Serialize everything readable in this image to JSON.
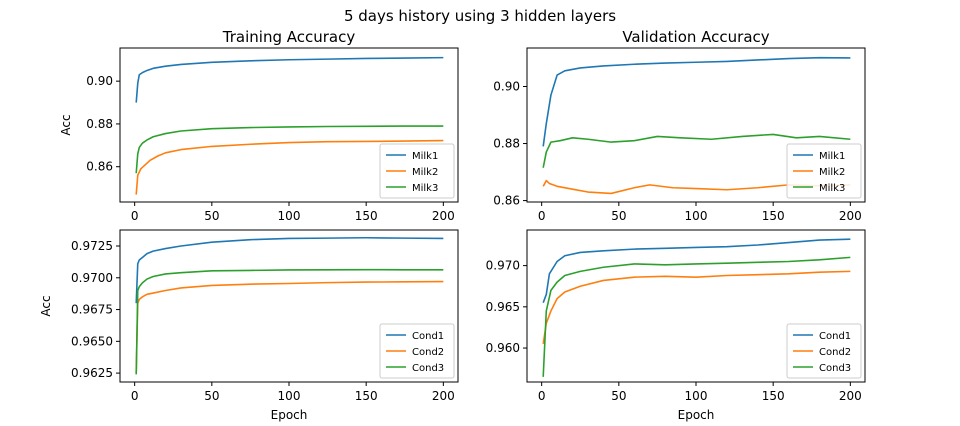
{
  "figure": {
    "title": "5 days history using 3 hidden layers"
  },
  "colors": {
    "series1": "#1f77b4",
    "series2": "#ff7f0e",
    "series3": "#2ca02c"
  },
  "chart_data": [
    {
      "type": "line",
      "title": "Training Accuracy",
      "xlabel": "",
      "ylabel": "Acc",
      "xlim": [
        -9.5,
        209.5
      ],
      "ylim": [
        0.8435,
        0.9155
      ],
      "xticks": [
        0,
        50,
        100,
        150,
        200
      ],
      "yticks": [
        0.86,
        0.88,
        0.9
      ],
      "ytick_labels": [
        "0.86",
        "0.88",
        "0.90"
      ],
      "legend": "lower-right",
      "series": [
        {
          "name": "Milk1",
          "color": "#1f77b4",
          "points": [
            [
              1,
              0.89
            ],
            [
              2,
              0.899
            ],
            [
              3,
              0.903
            ],
            [
              5,
              0.904
            ],
            [
              8,
              0.905
            ],
            [
              12,
              0.906
            ],
            [
              20,
              0.907
            ],
            [
              30,
              0.9078
            ],
            [
              50,
              0.9088
            ],
            [
              75,
              0.9095
            ],
            [
              100,
              0.91
            ],
            [
              125,
              0.9103
            ],
            [
              150,
              0.9106
            ],
            [
              175,
              0.9108
            ],
            [
              200,
              0.911
            ]
          ]
        },
        {
          "name": "Milk2",
          "color": "#ff7f0e",
          "points": [
            [
              1,
              0.847
            ],
            [
              2,
              0.856
            ],
            [
              4,
              0.859
            ],
            [
              7,
              0.861
            ],
            [
              10,
              0.863
            ],
            [
              15,
              0.865
            ],
            [
              20,
              0.8665
            ],
            [
              30,
              0.868
            ],
            [
              50,
              0.8695
            ],
            [
              75,
              0.8705
            ],
            [
              100,
              0.8713
            ],
            [
              125,
              0.8717
            ],
            [
              150,
              0.8718
            ],
            [
              175,
              0.872
            ],
            [
              200,
              0.8722
            ]
          ]
        },
        {
          "name": "Milk3",
          "color": "#2ca02c",
          "points": [
            [
              1,
              0.857
            ],
            [
              2,
              0.866
            ],
            [
              3,
              0.869
            ],
            [
              5,
              0.871
            ],
            [
              8,
              0.8725
            ],
            [
              12,
              0.874
            ],
            [
              20,
              0.8755
            ],
            [
              30,
              0.8767
            ],
            [
              50,
              0.8778
            ],
            [
              75,
              0.8783
            ],
            [
              100,
              0.8786
            ],
            [
              125,
              0.8788
            ],
            [
              150,
              0.8789
            ],
            [
              175,
              0.879
            ],
            [
              200,
              0.879
            ]
          ]
        }
      ]
    },
    {
      "type": "line",
      "title": "Validation Accuracy",
      "xlabel": "",
      "ylabel": "",
      "xlim": [
        -9.5,
        209.5
      ],
      "ylim": [
        0.8595,
        0.9135
      ],
      "xticks": [
        0,
        50,
        100,
        150,
        200
      ],
      "yticks": [
        0.86,
        0.88,
        0.9
      ],
      "ytick_labels": [
        "0.86",
        "0.88",
        "0.90"
      ],
      "legend": "lower-right",
      "series": [
        {
          "name": "Milk1",
          "color": "#1f77b4",
          "points": [
            [
              1,
              0.879
            ],
            [
              3,
              0.887
            ],
            [
              6,
              0.897
            ],
            [
              10,
              0.904
            ],
            [
              15,
              0.9055
            ],
            [
              25,
              0.9065
            ],
            [
              40,
              0.9072
            ],
            [
              60,
              0.9078
            ],
            [
              80,
              0.9082
            ],
            [
              100,
              0.9085
            ],
            [
              120,
              0.9088
            ],
            [
              140,
              0.9093
            ],
            [
              160,
              0.9098
            ],
            [
              180,
              0.9101
            ],
            [
              200,
              0.91
            ]
          ]
        },
        {
          "name": "Milk2",
          "color": "#ff7f0e",
          "points": [
            [
              1,
              0.865
            ],
            [
              3,
              0.867
            ],
            [
              5,
              0.866
            ],
            [
              10,
              0.865
            ],
            [
              20,
              0.864
            ],
            [
              30,
              0.863
            ],
            [
              45,
              0.8625
            ],
            [
              60,
              0.8645
            ],
            [
              70,
              0.8655
            ],
            [
              85,
              0.8645
            ],
            [
              100,
              0.8642
            ],
            [
              120,
              0.8638
            ],
            [
              140,
              0.8645
            ],
            [
              160,
              0.8655
            ],
            [
              180,
              0.8652
            ],
            [
              200,
              0.8655
            ]
          ]
        },
        {
          "name": "Milk3",
          "color": "#2ca02c",
          "points": [
            [
              1,
              0.8715
            ],
            [
              3,
              0.877
            ],
            [
              6,
              0.8805
            ],
            [
              12,
              0.881
            ],
            [
              20,
              0.882
            ],
            [
              30,
              0.8815
            ],
            [
              45,
              0.8805
            ],
            [
              60,
              0.881
            ],
            [
              75,
              0.8825
            ],
            [
              90,
              0.882
            ],
            [
              110,
              0.8815
            ],
            [
              130,
              0.8825
            ],
            [
              150,
              0.8832
            ],
            [
              165,
              0.882
            ],
            [
              180,
              0.8825
            ],
            [
              200,
              0.8815
            ]
          ]
        }
      ]
    },
    {
      "type": "line",
      "title": "",
      "xlabel": "Epoch",
      "ylabel": "Acc",
      "xlim": [
        -9.5,
        209.5
      ],
      "ylim": [
        0.9618,
        0.97376
      ],
      "xticks": [
        0,
        50,
        100,
        150,
        200
      ],
      "yticks": [
        0.9625,
        0.965,
        0.9675,
        0.97,
        0.9725
      ],
      "ytick_labels": [
        "0.9625",
        "0.9650",
        "0.9675",
        "0.9700",
        "0.9725"
      ],
      "legend": "lower-right",
      "series": [
        {
          "name": "Cond1",
          "color": "#1f77b4",
          "points": [
            [
              1,
              0.968
            ],
            [
              2,
              0.9711
            ],
            [
              3,
              0.9714
            ],
            [
              5,
              0.9716
            ],
            [
              8,
              0.9719
            ],
            [
              12,
              0.9721
            ],
            [
              20,
              0.9723
            ],
            [
              30,
              0.9725
            ],
            [
              50,
              0.9728
            ],
            [
              75,
              0.973
            ],
            [
              100,
              0.9731
            ],
            [
              125,
              0.97312
            ],
            [
              150,
              0.97315
            ],
            [
              175,
              0.97312
            ],
            [
              200,
              0.9731
            ]
          ]
        },
        {
          "name": "Cond2",
          "color": "#ff7f0e",
          "points": [
            [
              1,
              0.9625
            ],
            [
              2,
              0.968
            ],
            [
              3,
              0.9683
            ],
            [
              5,
              0.9685
            ],
            [
              8,
              0.9687
            ],
            [
              12,
              0.9688
            ],
            [
              20,
              0.969
            ],
            [
              30,
              0.9692
            ],
            [
              50,
              0.9694
            ],
            [
              75,
              0.9695
            ],
            [
              100,
              0.96955
            ],
            [
              125,
              0.96962
            ],
            [
              150,
              0.96966
            ],
            [
              175,
              0.96968
            ],
            [
              200,
              0.9697
            ]
          ]
        },
        {
          "name": "Cond3",
          "color": "#2ca02c",
          "points": [
            [
              1,
              0.9624
            ],
            [
              2,
              0.969
            ],
            [
              3,
              0.9693
            ],
            [
              5,
              0.9696
            ],
            [
              8,
              0.9699
            ],
            [
              12,
              0.9701
            ],
            [
              20,
              0.9703
            ],
            [
              30,
              0.9704
            ],
            [
              50,
              0.97055
            ],
            [
              75,
              0.97058
            ],
            [
              100,
              0.97062
            ],
            [
              125,
              0.97063
            ],
            [
              150,
              0.97064
            ],
            [
              175,
              0.97063
            ],
            [
              200,
              0.97063
            ]
          ]
        }
      ]
    },
    {
      "type": "line",
      "title": "",
      "xlabel": "Epoch",
      "ylabel": "",
      "xlim": [
        -9.5,
        209.5
      ],
      "ylim": [
        0.95588,
        0.97432
      ],
      "xticks": [
        0,
        50,
        100,
        150,
        200
      ],
      "yticks": [
        0.96,
        0.965,
        0.97
      ],
      "ytick_labels": [
        "0.960",
        "0.965",
        "0.970"
      ],
      "legend": "lower-right",
      "series": [
        {
          "name": "Cond1",
          "color": "#1f77b4",
          "points": [
            [
              1,
              0.9655
            ],
            [
              3,
              0.9665
            ],
            [
              5,
              0.969
            ],
            [
              10,
              0.9705
            ],
            [
              15,
              0.9712
            ],
            [
              25,
              0.9716
            ],
            [
              40,
              0.9718
            ],
            [
              60,
              0.972
            ],
            [
              80,
              0.9721
            ],
            [
              100,
              0.9722
            ],
            [
              120,
              0.9723
            ],
            [
              140,
              0.9725
            ],
            [
              160,
              0.9728
            ],
            [
              180,
              0.9731
            ],
            [
              200,
              0.9732
            ]
          ]
        },
        {
          "name": "Cond2",
          "color": "#ff7f0e",
          "points": [
            [
              1,
              0.9605
            ],
            [
              3,
              0.963
            ],
            [
              6,
              0.9645
            ],
            [
              10,
              0.966
            ],
            [
              15,
              0.9668
            ],
            [
              25,
              0.9675
            ],
            [
              40,
              0.9682
            ],
            [
              60,
              0.9686
            ],
            [
              80,
              0.9687
            ],
            [
              100,
              0.9686
            ],
            [
              120,
              0.9688
            ],
            [
              140,
              0.9689
            ],
            [
              160,
              0.969
            ],
            [
              180,
              0.9692
            ],
            [
              200,
              0.9693
            ]
          ]
        },
        {
          "name": "Cond3",
          "color": "#2ca02c",
          "points": [
            [
              1,
              0.9565
            ],
            [
              3,
              0.9645
            ],
            [
              6,
              0.967
            ],
            [
              10,
              0.968
            ],
            [
              15,
              0.9688
            ],
            [
              25,
              0.9693
            ],
            [
              40,
              0.9698
            ],
            [
              60,
              0.9702
            ],
            [
              80,
              0.9701
            ],
            [
              100,
              0.9702
            ],
            [
              120,
              0.9703
            ],
            [
              140,
              0.9704
            ],
            [
              160,
              0.9705
            ],
            [
              180,
              0.9707
            ],
            [
              200,
              0.971
            ]
          ]
        }
      ]
    }
  ]
}
